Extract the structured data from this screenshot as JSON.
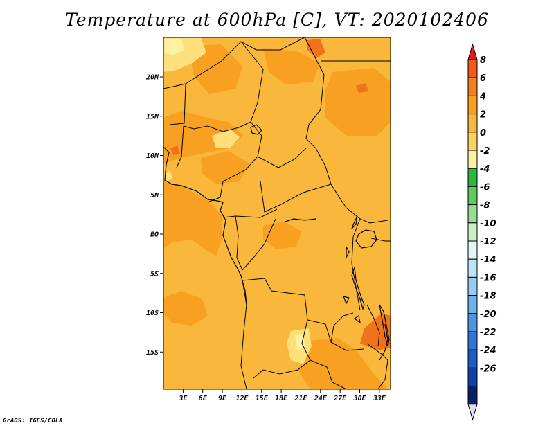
{
  "title": "Temperature at 600hPa [C], VT: 2020102406",
  "credit": "GrADS: IGES/COLA",
  "map": {
    "lat_ticks": [
      {
        "value": 20,
        "label": "20N"
      },
      {
        "value": 15,
        "label": "15N"
      },
      {
        "value": 10,
        "label": "10N"
      },
      {
        "value": 5,
        "label": "5N"
      },
      {
        "value": 0,
        "label": "EQ"
      },
      {
        "value": -5,
        "label": "5S"
      },
      {
        "value": -10,
        "label": "10S"
      },
      {
        "value": -15,
        "label": "15S"
      }
    ],
    "lon_ticks": [
      {
        "value": 3,
        "label": "3E"
      },
      {
        "value": 6,
        "label": "6E"
      },
      {
        "value": 9,
        "label": "9E"
      },
      {
        "value": 12,
        "label": "12E"
      },
      {
        "value": 15,
        "label": "15E"
      },
      {
        "value": 18,
        "label": "18E"
      },
      {
        "value": 21,
        "label": "21E"
      },
      {
        "value": 24,
        "label": "24E"
      },
      {
        "value": 27,
        "label": "27E"
      },
      {
        "value": 30,
        "label": "30E"
      },
      {
        "value": 33,
        "label": "33E"
      }
    ],
    "colors": {
      "dominant": "#f9b83c",
      "warm_patch": "#f7a021",
      "hot_patch": "#f0721a",
      "cool_patch": "#fde07c",
      "pale_patch": "#fcf2a4",
      "border": "#000000"
    }
  },
  "colorbar": {
    "levels": [
      "8",
      "6",
      "4",
      "2",
      "0",
      "-2",
      "-4",
      "-6",
      "-8",
      "-10",
      "-12",
      "-14",
      "-16",
      "-18",
      "-20",
      "-22",
      "-24",
      "-26"
    ],
    "colors": [
      "#e41a1c",
      "#f05a1a",
      "#f47f20",
      "#f7a021",
      "#f9b83c",
      "#fcd25e",
      "#fef0a4",
      "#2db83c",
      "#5bcd5e",
      "#94e08e",
      "#c8f0c3",
      "#e2f6f5",
      "#bfe3f6",
      "#95cdf2",
      "#6fb2ea",
      "#4c95e0",
      "#2f76d4",
      "#1d5cc4",
      "#123fa8",
      "#0a1f6b",
      "#dcdcf5"
    ]
  }
}
